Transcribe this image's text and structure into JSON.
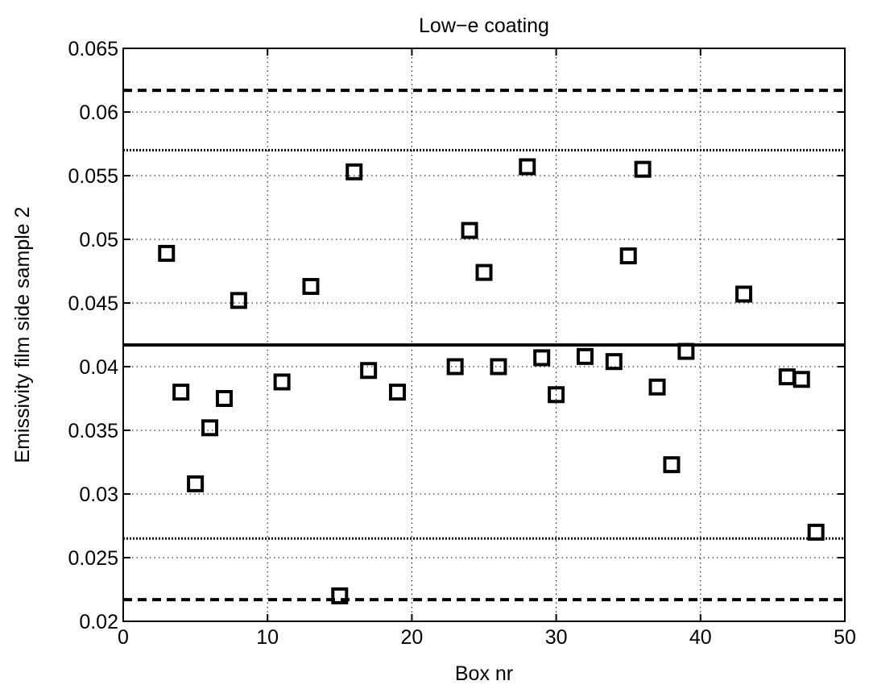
{
  "chart_data": {
    "type": "scatter",
    "title": "Low−e coating",
    "xlabel": "Box nr",
    "ylabel": "Emissivity film side sample 2",
    "xlim": [
      0,
      50
    ],
    "ylim": [
      0.02,
      0.065
    ],
    "x_ticks": [
      0,
      10,
      20,
      30,
      40,
      50
    ],
    "x_tick_labels": [
      "0",
      "10",
      "20",
      "30",
      "40",
      "50"
    ],
    "y_ticks": [
      0.02,
      0.025,
      0.03,
      0.035,
      0.04,
      0.045,
      0.05,
      0.055,
      0.06,
      0.065
    ],
    "y_tick_labels": [
      "0.02",
      "0.025",
      "0.03",
      "0.035",
      "0.04",
      "0.045",
      "0.05",
      "0.055",
      "0.06",
      "0.065"
    ],
    "grid": true,
    "marker": "square",
    "marker_color": "#000000",
    "points": [
      {
        "x": 3,
        "y": 0.0489
      },
      {
        "x": 4,
        "y": 0.038
      },
      {
        "x": 5,
        "y": 0.0308
      },
      {
        "x": 6,
        "y": 0.0352
      },
      {
        "x": 7,
        "y": 0.0375
      },
      {
        "x": 8,
        "y": 0.0452
      },
      {
        "x": 11,
        "y": 0.0388
      },
      {
        "x": 13,
        "y": 0.0463
      },
      {
        "x": 15,
        "y": 0.022
      },
      {
        "x": 16,
        "y": 0.0553
      },
      {
        "x": 17,
        "y": 0.0397
      },
      {
        "x": 19,
        "y": 0.038
      },
      {
        "x": 23,
        "y": 0.04
      },
      {
        "x": 24,
        "y": 0.0507
      },
      {
        "x": 25,
        "y": 0.0474
      },
      {
        "x": 26,
        "y": 0.04
      },
      {
        "x": 28,
        "y": 0.0557
      },
      {
        "x": 29,
        "y": 0.0407
      },
      {
        "x": 30,
        "y": 0.0378
      },
      {
        "x": 32,
        "y": 0.0408
      },
      {
        "x": 34,
        "y": 0.0404
      },
      {
        "x": 35,
        "y": 0.0487
      },
      {
        "x": 36,
        "y": 0.0555
      },
      {
        "x": 37,
        "y": 0.0384
      },
      {
        "x": 38,
        "y": 0.0323
      },
      {
        "x": 39,
        "y": 0.0412
      },
      {
        "x": 43,
        "y": 0.0457
      },
      {
        "x": 46,
        "y": 0.0392
      },
      {
        "x": 47,
        "y": 0.039
      },
      {
        "x": 48,
        "y": 0.027
      }
    ],
    "reference_lines": [
      {
        "style": "solid",
        "y": 0.0417
      },
      {
        "style": "dashed",
        "y": 0.0617
      },
      {
        "style": "dashed",
        "y": 0.0217
      },
      {
        "style": "dotted",
        "y": 0.057
      },
      {
        "style": "dotted",
        "y": 0.0265
      }
    ]
  }
}
